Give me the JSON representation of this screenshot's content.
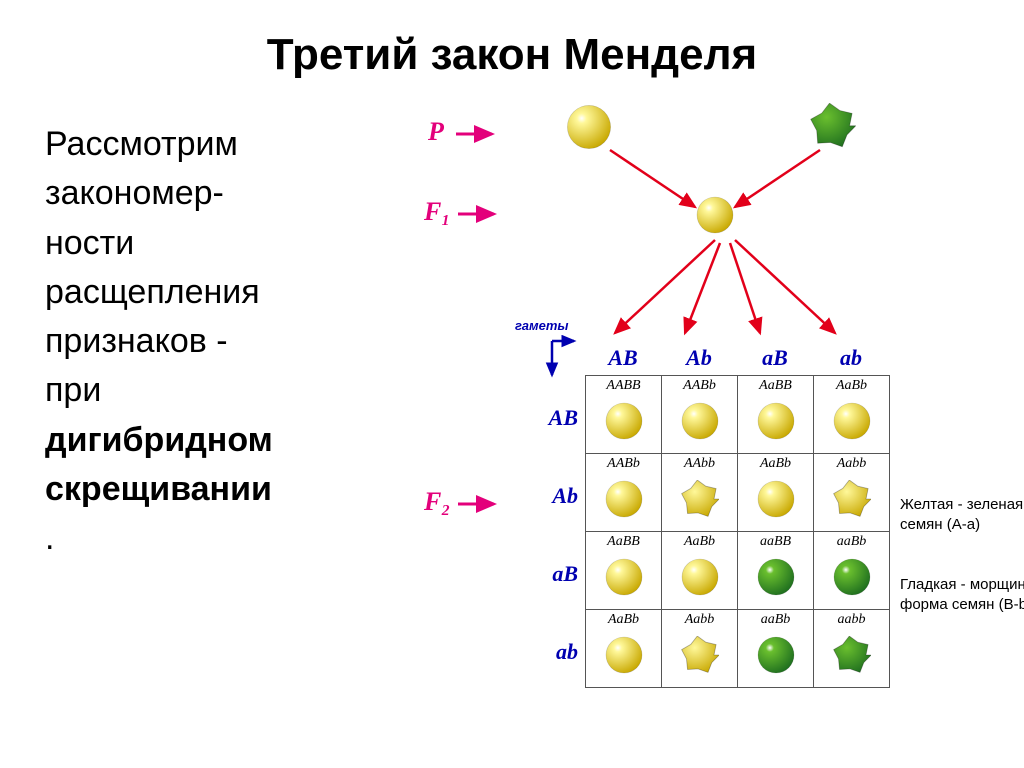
{
  "title": "Третий закон Менделя",
  "body": {
    "l1": "Рассмотрим",
    "l2": "закономер-",
    "l3": "ности",
    "l4": "расщепления",
    "l5": "признаков -",
    "l6": "при",
    "l7": "дигибридном",
    "l8": "скрещивании",
    "l9": "."
  },
  "labels": {
    "P": "P",
    "F1": "F₁",
    "F2": "F₂",
    "gametes": "гаметы"
  },
  "gametes": [
    "AB",
    "Ab",
    "aB",
    "ab"
  ],
  "punnett": [
    [
      {
        "g": "AABB",
        "p": "ys"
      },
      {
        "g": "AABb",
        "p": "ys"
      },
      {
        "g": "AaBB",
        "p": "ys"
      },
      {
        "g": "AaBb",
        "p": "ys"
      }
    ],
    [
      {
        "g": "AABb",
        "p": "ys"
      },
      {
        "g": "AAbb",
        "p": "yw"
      },
      {
        "g": "AaBb",
        "p": "ys"
      },
      {
        "g": "Aabb",
        "p": "yw"
      }
    ],
    [
      {
        "g": "AaBB",
        "p": "ys"
      },
      {
        "g": "AaBb",
        "p": "ys"
      },
      {
        "g": "aaBB",
        "p": "gs"
      },
      {
        "g": "aaBb",
        "p": "gs"
      }
    ],
    [
      {
        "g": "AaBb",
        "p": "ys"
      },
      {
        "g": "Aabb",
        "p": "yw"
      },
      {
        "g": "aaBb",
        "p": "gs"
      },
      {
        "g": "aabb",
        "p": "gw"
      }
    ]
  ],
  "legend": {
    "color": "Желтая - зеленая окраска семян (A-a)",
    "shape": "Гладкая - морщинистая форма семян (B-b)"
  },
  "colors": {
    "yellow_light": "#fff89a",
    "yellow_dark": "#c8a800",
    "green_light": "#6abf2e",
    "green_dark": "#1f6f1f",
    "magenta": "#e3007b",
    "red": "#e2001a",
    "blue": "#0000b0",
    "black": "#000000"
  },
  "seed_sizes": {
    "parent": 48,
    "f1": 40,
    "cell": 40,
    "wrinkled_scale": 0.95
  }
}
